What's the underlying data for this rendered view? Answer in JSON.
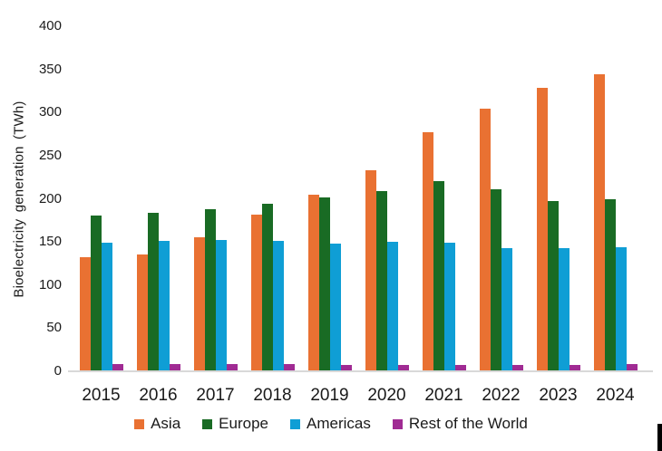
{
  "chart_data": {
    "type": "bar",
    "title": "",
    "xlabel": "",
    "ylabel": "Bioelectricity generation (TWh)",
    "ylim": [
      0,
      400
    ],
    "yticks": [
      0,
      50,
      100,
      150,
      200,
      250,
      300,
      350,
      400
    ],
    "grid": false,
    "legend_position": "bottom",
    "categories": [
      "2015",
      "2016",
      "2017",
      "2018",
      "2019",
      "2020",
      "2021",
      "2022",
      "2023",
      "2024"
    ],
    "series": [
      {
        "name": "Asia",
        "color": "#E97132",
        "values": [
          132,
          136,
          155,
          182,
          205,
          233,
          277,
          305,
          329,
          344
        ]
      },
      {
        "name": "Europe",
        "color": "#196B24",
        "values": [
          181,
          184,
          188,
          194,
          202,
          209,
          221,
          211,
          197,
          200
        ]
      },
      {
        "name": "Americas",
        "color": "#0F9ED5",
        "values": [
          149,
          151,
          152,
          151,
          148,
          150,
          149,
          143,
          143,
          144
        ]
      },
      {
        "name": "Rest of the World",
        "color": "#A02B93",
        "values": [
          8,
          8,
          8,
          8,
          7,
          7,
          7,
          7,
          7,
          8
        ]
      }
    ]
  },
  "style": {
    "axis_line_color": "#D9D9D9",
    "text_color": "#1A1A1A",
    "background": "#FFFFFF"
  }
}
